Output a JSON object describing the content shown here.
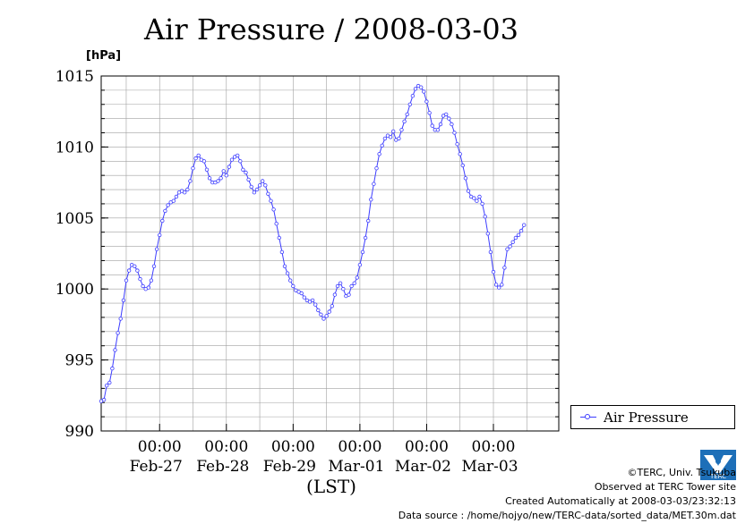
{
  "header": {
    "title": "Air Pressure / 2008-03-03",
    "unit": "[hPa]"
  },
  "legend": {
    "label": "Air Pressure"
  },
  "credits": {
    "copyright": "©TERC, Univ. Tsukuba",
    "observed": "Observed at TERC Tower site",
    "created": "Created Automatically at 2008-03-03/23:32:13",
    "source": "Data source : /home/hojyo/new/TERC-data/sorted_data/MET.30m.dat"
  },
  "logo": {
    "text": "TERC"
  },
  "colors": {
    "series": "#3d3dff",
    "grid": "#a0a0a0"
  },
  "chart_data": {
    "type": "line",
    "title": "Air Pressure / 2008-03-03",
    "ylabel": "[hPa]",
    "xlabel": "(LST)",
    "ylim": [
      990,
      1015
    ],
    "yticks": [
      990,
      995,
      1000,
      1005,
      1010,
      1015
    ],
    "xlim": [
      "2008-02-26 03:00",
      "2008-03-03 23:30"
    ],
    "xticks": [
      {
        "time": "2008-02-27 00:00",
        "label": "00:00",
        "date": "Feb-27"
      },
      {
        "time": "2008-02-28 00:00",
        "label": "00:00",
        "date": "Feb-28"
      },
      {
        "time": "2008-02-29 00:00",
        "label": "00:00",
        "date": "Feb-29"
      },
      {
        "time": "2008-03-01 00:00",
        "label": "00:00",
        "date": "Mar-01"
      },
      {
        "time": "2008-03-02 00:00",
        "label": "00:00",
        "date": "Mar-02"
      },
      {
        "time": "2008-03-03 00:00",
        "label": "00:00",
        "date": "Mar-03"
      }
    ],
    "grid": true,
    "legend_position": "right",
    "series": [
      {
        "name": "Air Pressure",
        "points": [
          [
            "2008-02-26 03:00",
            992.1
          ],
          [
            "2008-02-26 04:00",
            992.2
          ],
          [
            "2008-02-26 05:00",
            993.2
          ],
          [
            "2008-02-26 06:00",
            993.4
          ],
          [
            "2008-02-26 07:00",
            994.4
          ],
          [
            "2008-02-26 08:00",
            995.7
          ],
          [
            "2008-02-26 09:00",
            996.9
          ],
          [
            "2008-02-26 10:00",
            997.9
          ],
          [
            "2008-02-26 11:00",
            999.2
          ],
          [
            "2008-02-26 12:00",
            1000.6
          ],
          [
            "2008-02-26 13:00",
            1001.3
          ],
          [
            "2008-02-26 14:00",
            1001.7
          ],
          [
            "2008-02-26 15:00",
            1001.6
          ],
          [
            "2008-02-26 16:00",
            1001.3
          ],
          [
            "2008-02-26 17:00",
            1000.7
          ],
          [
            "2008-02-26 18:00",
            1000.2
          ],
          [
            "2008-02-26 19:00",
            1000.0
          ],
          [
            "2008-02-26 20:00",
            1000.1
          ],
          [
            "2008-02-26 21:00",
            1000.6
          ],
          [
            "2008-02-26 22:00",
            1001.6
          ],
          [
            "2008-02-26 23:00",
            1002.8
          ],
          [
            "2008-02-27 00:00",
            1003.8
          ],
          [
            "2008-02-27 01:00",
            1004.8
          ],
          [
            "2008-02-27 02:00",
            1005.5
          ],
          [
            "2008-02-27 03:00",
            1005.9
          ],
          [
            "2008-02-27 04:00",
            1006.1
          ],
          [
            "2008-02-27 05:00",
            1006.2
          ],
          [
            "2008-02-27 06:00",
            1006.5
          ],
          [
            "2008-02-27 07:00",
            1006.8
          ],
          [
            "2008-02-27 08:00",
            1006.9
          ],
          [
            "2008-02-27 09:00",
            1006.8
          ],
          [
            "2008-02-27 10:00",
            1007.0
          ],
          [
            "2008-02-27 11:00",
            1007.6
          ],
          [
            "2008-02-27 12:00",
            1008.5
          ],
          [
            "2008-02-27 13:00",
            1009.2
          ],
          [
            "2008-02-27 14:00",
            1009.4
          ],
          [
            "2008-02-27 15:00",
            1009.1
          ],
          [
            "2008-02-27 16:00",
            1009.0
          ],
          [
            "2008-02-27 17:00",
            1008.4
          ],
          [
            "2008-02-27 18:00",
            1007.8
          ],
          [
            "2008-02-27 19:00",
            1007.5
          ],
          [
            "2008-02-27 20:00",
            1007.5
          ],
          [
            "2008-02-27 21:00",
            1007.6
          ],
          [
            "2008-02-27 22:00",
            1007.8
          ],
          [
            "2008-02-27 23:00",
            1008.3
          ],
          [
            "2008-02-28 00:00",
            1008.0
          ],
          [
            "2008-02-28 01:00",
            1008.6
          ],
          [
            "2008-02-28 02:00",
            1009.1
          ],
          [
            "2008-02-28 03:00",
            1009.3
          ],
          [
            "2008-02-28 04:00",
            1009.4
          ],
          [
            "2008-02-28 05:00",
            1009.0
          ],
          [
            "2008-02-28 06:00",
            1008.4
          ],
          [
            "2008-02-28 07:00",
            1008.2
          ],
          [
            "2008-02-28 08:00",
            1007.7
          ],
          [
            "2008-02-28 09:00",
            1007.2
          ],
          [
            "2008-02-28 10:00",
            1006.8
          ],
          [
            "2008-02-28 11:00",
            1007.0
          ],
          [
            "2008-02-28 12:00",
            1007.3
          ],
          [
            "2008-02-28 13:00",
            1007.6
          ],
          [
            "2008-02-28 14:00",
            1007.3
          ],
          [
            "2008-02-28 15:00",
            1006.7
          ],
          [
            "2008-02-28 16:00",
            1006.2
          ],
          [
            "2008-02-28 17:00",
            1005.6
          ],
          [
            "2008-02-28 18:00",
            1004.6
          ],
          [
            "2008-02-28 19:00",
            1003.6
          ],
          [
            "2008-02-28 20:00",
            1002.6
          ],
          [
            "2008-02-28 21:00",
            1001.6
          ],
          [
            "2008-02-28 22:00",
            1001.1
          ],
          [
            "2008-02-28 23:00",
            1000.6
          ],
          [
            "2008-02-29 00:00",
            1000.2
          ],
          [
            "2008-02-29 01:00",
            999.9
          ],
          [
            "2008-02-29 02:00",
            999.8
          ],
          [
            "2008-02-29 03:00",
            999.7
          ],
          [
            "2008-02-29 04:00",
            999.4
          ],
          [
            "2008-02-29 05:00",
            999.2
          ],
          [
            "2008-02-29 06:00",
            999.1
          ],
          [
            "2008-02-29 07:00",
            999.2
          ],
          [
            "2008-02-29 08:00",
            998.9
          ],
          [
            "2008-02-29 09:00",
            998.5
          ],
          [
            "2008-02-29 10:00",
            998.2
          ],
          [
            "2008-02-29 11:00",
            997.9
          ],
          [
            "2008-02-29 12:00",
            998.1
          ],
          [
            "2008-02-29 13:00",
            998.4
          ],
          [
            "2008-02-29 14:00",
            998.8
          ],
          [
            "2008-02-29 15:00",
            999.6
          ],
          [
            "2008-02-29 16:00",
            1000.2
          ],
          [
            "2008-02-29 17:00",
            1000.4
          ],
          [
            "2008-02-29 18:00",
            1000.0
          ],
          [
            "2008-02-29 19:00",
            999.5
          ],
          [
            "2008-02-29 20:00",
            999.6
          ],
          [
            "2008-02-29 21:00",
            1000.2
          ],
          [
            "2008-02-29 22:00",
            1000.4
          ],
          [
            "2008-02-29 23:00",
            1000.8
          ],
          [
            "2008-03-01 00:00",
            1001.7
          ],
          [
            "2008-03-01 01:00",
            1002.6
          ],
          [
            "2008-03-01 02:00",
            1003.6
          ],
          [
            "2008-03-01 03:00",
            1004.8
          ],
          [
            "2008-03-01 04:00",
            1006.3
          ],
          [
            "2008-03-01 05:00",
            1007.4
          ],
          [
            "2008-03-01 06:00",
            1008.5
          ],
          [
            "2008-03-01 07:00",
            1009.5
          ],
          [
            "2008-03-01 08:00",
            1010.1
          ],
          [
            "2008-03-01 09:00",
            1010.6
          ],
          [
            "2008-03-01 10:00",
            1010.8
          ],
          [
            "2008-03-01 11:00",
            1010.7
          ],
          [
            "2008-03-01 12:00",
            1011.1
          ],
          [
            "2008-03-01 13:00",
            1010.5
          ],
          [
            "2008-03-01 14:00",
            1010.6
          ],
          [
            "2008-03-01 15:00",
            1011.2
          ],
          [
            "2008-03-01 16:00",
            1011.8
          ],
          [
            "2008-03-01 17:00",
            1012.3
          ],
          [
            "2008-03-01 18:00",
            1013.0
          ],
          [
            "2008-03-01 19:00",
            1013.6
          ],
          [
            "2008-03-01 20:00",
            1014.1
          ],
          [
            "2008-03-01 21:00",
            1014.3
          ],
          [
            "2008-03-01 22:00",
            1014.2
          ],
          [
            "2008-03-01 23:00",
            1013.9
          ],
          [
            "2008-03-02 00:00",
            1013.2
          ],
          [
            "2008-03-02 01:00",
            1012.4
          ],
          [
            "2008-03-02 02:00",
            1011.5
          ],
          [
            "2008-03-02 03:00",
            1011.2
          ],
          [
            "2008-03-02 04:00",
            1011.2
          ],
          [
            "2008-03-02 05:00",
            1011.6
          ],
          [
            "2008-03-02 06:00",
            1012.2
          ],
          [
            "2008-03-02 07:00",
            1012.3
          ],
          [
            "2008-03-02 08:00",
            1012.0
          ],
          [
            "2008-03-02 09:00",
            1011.6
          ],
          [
            "2008-03-02 10:00",
            1011.0
          ],
          [
            "2008-03-02 11:00",
            1010.2
          ],
          [
            "2008-03-02 12:00",
            1009.5
          ],
          [
            "2008-03-02 13:00",
            1008.7
          ],
          [
            "2008-03-02 14:00",
            1007.8
          ],
          [
            "2008-03-02 15:00",
            1006.9
          ],
          [
            "2008-03-02 16:00",
            1006.5
          ],
          [
            "2008-03-02 17:00",
            1006.4
          ],
          [
            "2008-03-02 18:00",
            1006.2
          ],
          [
            "2008-03-02 19:00",
            1006.5
          ],
          [
            "2008-03-02 20:00",
            1006.0
          ],
          [
            "2008-03-02 21:00",
            1005.1
          ],
          [
            "2008-03-02 22:00",
            1003.9
          ],
          [
            "2008-03-02 23:00",
            1002.6
          ],
          [
            "2008-03-03 00:00",
            1001.2
          ],
          [
            "2008-03-03 01:00",
            1000.3
          ],
          [
            "2008-03-03 02:00",
            1000.1
          ],
          [
            "2008-03-03 03:00",
            1000.3
          ],
          [
            "2008-03-03 04:00",
            1001.5
          ],
          [
            "2008-03-03 05:00",
            1002.8
          ],
          [
            "2008-03-03 06:00",
            1003.0
          ],
          [
            "2008-03-03 07:00",
            1003.3
          ],
          [
            "2008-03-03 08:00",
            1003.6
          ],
          [
            "2008-03-03 09:00",
            1003.8
          ],
          [
            "2008-03-03 10:00",
            1004.1
          ],
          [
            "2008-03-03 11:00",
            1004.5
          ]
        ]
      }
    ]
  }
}
